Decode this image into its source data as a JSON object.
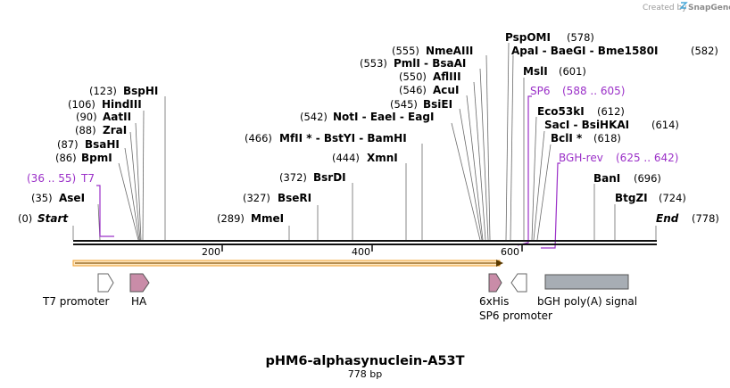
{
  "credit": {
    "prefix": "Created by",
    "brand": "SnapGene"
  },
  "map": {
    "name": "pHM6-alphasynuclein-A53T",
    "length_label": "778 bp",
    "length_bp": 778
  },
  "scale": {
    "ticks": [
      "200",
      "400",
      "600"
    ],
    "tick_bp": [
      200,
      400,
      600
    ]
  },
  "sites": [
    {
      "name": "Start",
      "pos": "(0)",
      "bp": 0,
      "italic": true
    },
    {
      "name": "AseI",
      "pos": "(35)",
      "bp": 35
    },
    {
      "name": "BpmI",
      "pos": "(86)",
      "bp": 86
    },
    {
      "name": "BsaHI",
      "pos": "(87)",
      "bp": 87
    },
    {
      "name": "ZraI",
      "pos": "(88)",
      "bp": 88
    },
    {
      "name": "AatII",
      "pos": "(90)",
      "bp": 90
    },
    {
      "name": "HindIII",
      "pos": "(106)",
      "bp": 106
    },
    {
      "name": "BspHI",
      "pos": "(123)",
      "bp": 123
    },
    {
      "name": "MmeI",
      "pos": "(289)",
      "bp": 289
    },
    {
      "name": "BseRI",
      "pos": "(327)",
      "bp": 327
    },
    {
      "name": "BsrDI",
      "pos": "(372)",
      "bp": 372
    },
    {
      "name": "XmnI",
      "pos": "(444)",
      "bp": 444
    },
    {
      "name": "MfII * - BstYI - BamHI",
      "pos": "(466)",
      "bp": 466
    },
    {
      "name": "NotI - EaeI - EagI",
      "pos": "(542)",
      "bp": 542
    },
    {
      "name": "BsiEI",
      "pos": "(545)",
      "bp": 545
    },
    {
      "name": "AcuI",
      "pos": "(546)",
      "bp": 546
    },
    {
      "name": "AflIII",
      "pos": "(550)",
      "bp": 550
    },
    {
      "name": "PmlI - BsaAI",
      "pos": "(553)",
      "bp": 553
    },
    {
      "name": "NmeAIII",
      "pos": "(555)",
      "bp": 555
    },
    {
      "name": "PspOMI",
      "pos": "(578)",
      "bp": 578
    },
    {
      "name": "ApaI - BaeGI - Bme1580I",
      "pos": "(582)",
      "bp": 582
    },
    {
      "name": "MslI",
      "pos": "(601)",
      "bp": 601
    },
    {
      "name": "Eco53kI",
      "pos": "(612)",
      "bp": 612
    },
    {
      "name": "SacI - BsiHKAI",
      "pos": "(614)",
      "bp": 614
    },
    {
      "name": "BclI *",
      "pos": "(618)",
      "bp": 618
    },
    {
      "name": "BanI",
      "pos": "(696)",
      "bp": 696
    },
    {
      "name": "BtgZI",
      "pos": "(724)",
      "bp": 724
    },
    {
      "name": "End",
      "pos": "(778)",
      "bp": 778,
      "italic": true
    }
  ],
  "primers": [
    {
      "name": "T7",
      "range": "(36 .. 55)",
      "start": 36,
      "end": 55,
      "strand": "forward"
    },
    {
      "name": "SP6",
      "range": "(588 .. 605)",
      "start": 588,
      "end": 605,
      "strand": "reverse"
    },
    {
      "name": "BGH-rev",
      "range": "(625 .. 642)",
      "start": 625,
      "end": 642,
      "strand": "reverse"
    }
  ],
  "orf": {
    "start": 0,
    "end": 575,
    "direction": "forward"
  },
  "features": [
    {
      "name": "T7 promoter",
      "type": "promoter",
      "direction": "forward"
    },
    {
      "name": "HA",
      "type": "tag",
      "direction": "forward"
    },
    {
      "name": "6xHis",
      "type": "tag",
      "direction": "forward"
    },
    {
      "name": "SP6 promoter",
      "type": "promoter",
      "direction": "reverse"
    },
    {
      "name": "bGH poly(A) signal",
      "type": "polyA"
    }
  ],
  "colors": {
    "primer": "#9b30c8",
    "orf": "#f0a030",
    "tag": "#c98ca8",
    "promoter": "#ffffff",
    "polya": "#a7adb4",
    "brand": "#4aa8d8"
  }
}
